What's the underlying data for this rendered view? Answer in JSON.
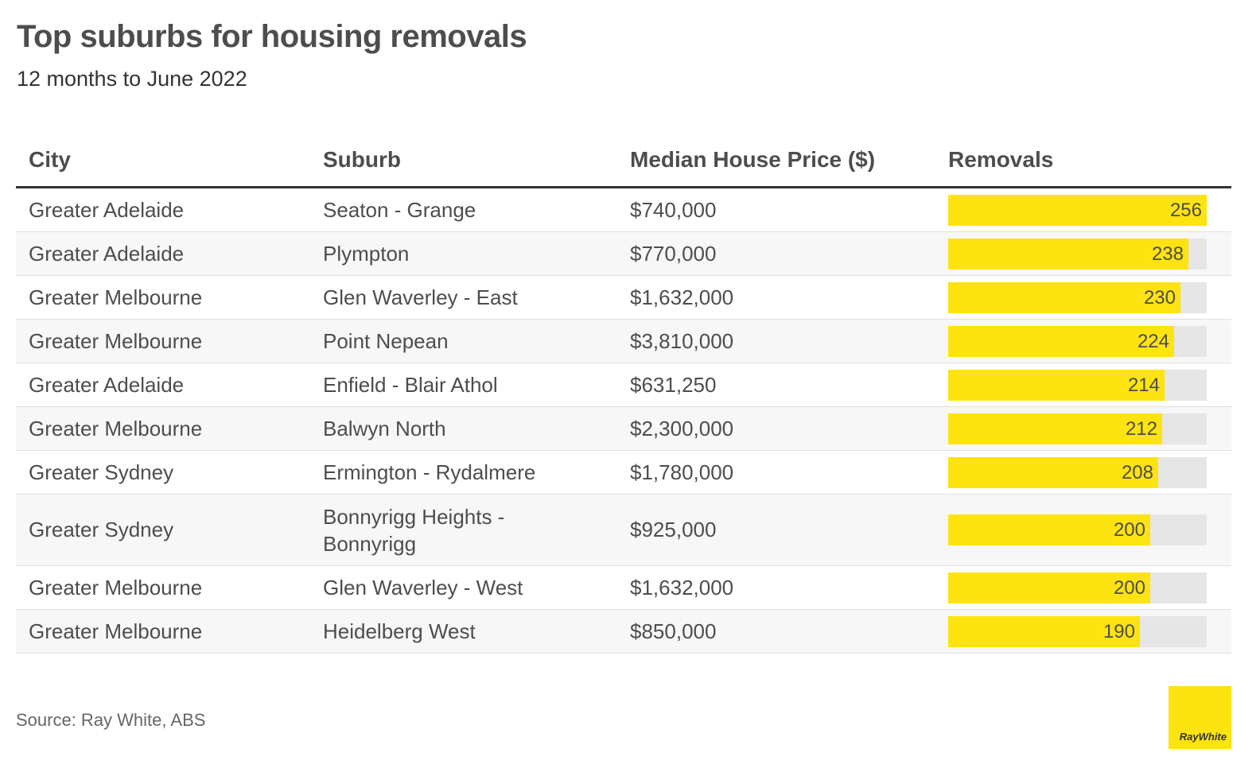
{
  "title": "Top suburbs for housing removals",
  "subtitle": "12 months to June 2022",
  "headers": {
    "city": "City",
    "suburb": "Suburb",
    "price": "Median House Price ($)",
    "removals": "Removals"
  },
  "chart_data": {
    "type": "table",
    "bar_max": 256,
    "bar_color": "#fde30f",
    "track_color": "#e6e6e6",
    "rows": [
      {
        "city": "Greater Adelaide",
        "suburb": "Seaton - Grange",
        "price": "$740,000",
        "removals": 256
      },
      {
        "city": "Greater Adelaide",
        "suburb": "Plympton",
        "price": "$770,000",
        "removals": 238
      },
      {
        "city": "Greater Melbourne",
        "suburb": "Glen Waverley - East",
        "price": "$1,632,000",
        "removals": 230
      },
      {
        "city": "Greater Melbourne",
        "suburb": "Point Nepean",
        "price": "$3,810,000",
        "removals": 224
      },
      {
        "city": "Greater Adelaide",
        "suburb": "Enfield - Blair Athol",
        "price": "$631,250",
        "removals": 214
      },
      {
        "city": "Greater Melbourne",
        "suburb": "Balwyn North",
        "price": "$2,300,000",
        "removals": 212
      },
      {
        "city": "Greater Sydney",
        "suburb": "Ermington - Rydalmere",
        "price": "$1,780,000",
        "removals": 208
      },
      {
        "city": "Greater Sydney",
        "suburb": "Bonnyrigg Heights - Bonnyrigg",
        "price": "$925,000",
        "removals": 200
      },
      {
        "city": "Greater Melbourne",
        "suburb": "Glen Waverley - West",
        "price": "$1,632,000",
        "removals": 200
      },
      {
        "city": "Greater Melbourne",
        "suburb": "Heidelberg West",
        "price": "$850,000",
        "removals": 190
      }
    ]
  },
  "source": "Source: Ray White, ABS",
  "logo": {
    "text": "RayWhite",
    "color": "#fde30f"
  }
}
